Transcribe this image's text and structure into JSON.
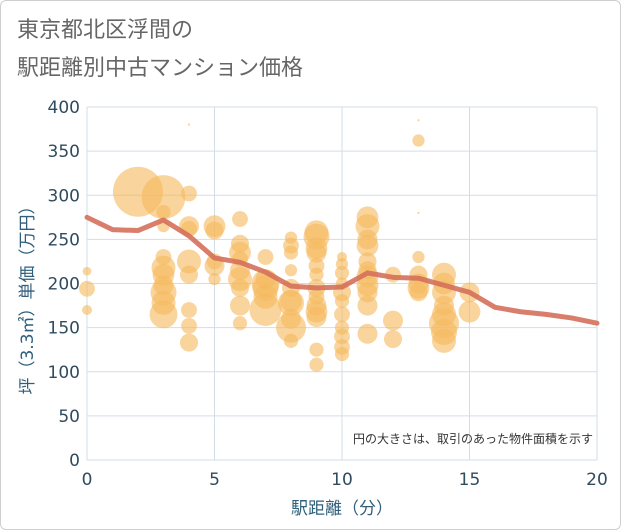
{
  "title": {
    "line1": "東京都北区浮間の",
    "line2": "駅距離別中古マンション価格"
  },
  "chart_data": {
    "type": "scatter",
    "xlabel": "駅距離（分）",
    "ylabel": "坪（3.3㎡）単価（万円）",
    "xlim": [
      0,
      20
    ],
    "ylim": [
      0,
      400
    ],
    "xticks": [
      0,
      5,
      10,
      15,
      20
    ],
    "yticks": [
      0,
      50,
      100,
      150,
      200,
      250,
      300,
      350,
      400
    ],
    "grid": true,
    "note": "円の大きさは、取引のあった物件面積を示す",
    "colors": {
      "bubble": "#f5b95f",
      "line": "#d4705a",
      "grid": "#d3dde7",
      "axis_text": "#2f4b5e"
    },
    "bubbles": [
      [
        0,
        214,
        3
      ],
      [
        0,
        194,
        10
      ],
      [
        0,
        170,
        4
      ],
      [
        2,
        304,
        100
      ],
      [
        3,
        298,
        77
      ],
      [
        3,
        281,
        8
      ],
      [
        3,
        265,
        6
      ],
      [
        3,
        230,
        10
      ],
      [
        3,
        218,
        23
      ],
      [
        3,
        210,
        19
      ],
      [
        3,
        198,
        16
      ],
      [
        3,
        190,
        27
      ],
      [
        3,
        178,
        23
      ],
      [
        3,
        165,
        31
      ],
      [
        4,
        302,
        10
      ],
      [
        4,
        265,
        16
      ],
      [
        4,
        262,
        10
      ],
      [
        4,
        225,
        23
      ],
      [
        4,
        210,
        13
      ],
      [
        4,
        170,
        10
      ],
      [
        4,
        152,
        10
      ],
      [
        4,
        133,
        13
      ],
      [
        4,
        380,
        0.2
      ],
      [
        5,
        265,
        19
      ],
      [
        5,
        260,
        13
      ],
      [
        5,
        225,
        10
      ],
      [
        5,
        220,
        16
      ],
      [
        5,
        205,
        6
      ],
      [
        6,
        273,
        10
      ],
      [
        6,
        245,
        13
      ],
      [
        6,
        235,
        19
      ],
      [
        6,
        228,
        10
      ],
      [
        6,
        215,
        16
      ],
      [
        6,
        205,
        23
      ],
      [
        6,
        195,
        13
      ],
      [
        6,
        175,
        16
      ],
      [
        6,
        155,
        8
      ],
      [
        7,
        230,
        10
      ],
      [
        7,
        205,
        16
      ],
      [
        7,
        200,
        31
      ],
      [
        7,
        195,
        27
      ],
      [
        7,
        185,
        23
      ],
      [
        7,
        170,
        41
      ],
      [
        8,
        252,
        6
      ],
      [
        8,
        243,
        10
      ],
      [
        8,
        235,
        8
      ],
      [
        8,
        215,
        6
      ],
      [
        8,
        195,
        13
      ],
      [
        8,
        180,
        19
      ],
      [
        8,
        178,
        27
      ],
      [
        8,
        160,
        16
      ],
      [
        8,
        150,
        36
      ],
      [
        8,
        135,
        8
      ],
      [
        9,
        258,
        23
      ],
      [
        9,
        253,
        27
      ],
      [
        9,
        240,
        19
      ],
      [
        9,
        235,
        16
      ],
      [
        9,
        220,
        10
      ],
      [
        9,
        210,
        8
      ],
      [
        9,
        195,
        13
      ],
      [
        9,
        185,
        10
      ],
      [
        9,
        175,
        16
      ],
      [
        9,
        168,
        19
      ],
      [
        9,
        162,
        16
      ],
      [
        9,
        125,
        8
      ],
      [
        9,
        108,
        8
      ],
      [
        10,
        230,
        4
      ],
      [
        10,
        222,
        6
      ],
      [
        10,
        212,
        8
      ],
      [
        10,
        200,
        6
      ],
      [
        10,
        190,
        13
      ],
      [
        10,
        180,
        8
      ],
      [
        10,
        165,
        10
      ],
      [
        10,
        150,
        8
      ],
      [
        10,
        140,
        10
      ],
      [
        10,
        128,
        10
      ],
      [
        10,
        120,
        8
      ],
      [
        11,
        275,
        19
      ],
      [
        11,
        265,
        23
      ],
      [
        11,
        250,
        16
      ],
      [
        11,
        243,
        19
      ],
      [
        11,
        225,
        13
      ],
      [
        11,
        215,
        13
      ],
      [
        11,
        208,
        19
      ],
      [
        11,
        198,
        19
      ],
      [
        11,
        190,
        16
      ],
      [
        11,
        175,
        16
      ],
      [
        11,
        143,
        16
      ],
      [
        12,
        210,
        10
      ],
      [
        12,
        158,
        16
      ],
      [
        12,
        137,
        13
      ],
      [
        13,
        385,
        0.2
      ],
      [
        13,
        362,
        6
      ],
      [
        13,
        280,
        0.2
      ],
      [
        13,
        230,
        6
      ],
      [
        13,
        210,
        13
      ],
      [
        13,
        200,
        16
      ],
      [
        13,
        195,
        19
      ],
      [
        13,
        190,
        13
      ],
      [
        14,
        210,
        23
      ],
      [
        14,
        200,
        19
      ],
      [
        14,
        190,
        23
      ],
      [
        14,
        175,
        16
      ],
      [
        14,
        165,
        23
      ],
      [
        14,
        155,
        36
      ],
      [
        14,
        145,
        27
      ],
      [
        14,
        135,
        23
      ],
      [
        15,
        190,
        16
      ],
      [
        15,
        168,
        19
      ]
    ],
    "line": {
      "x": [
        0,
        1,
        2,
        3,
        4,
        5,
        6,
        7,
        8,
        9,
        10,
        11,
        12,
        13,
        14,
        15,
        16,
        17,
        18,
        19,
        20
      ],
      "y": [
        275,
        261,
        260,
        272,
        254,
        229,
        224,
        213,
        197,
        195,
        196,
        212,
        207,
        206,
        198,
        190,
        173,
        168,
        165,
        161,
        155
      ]
    }
  }
}
